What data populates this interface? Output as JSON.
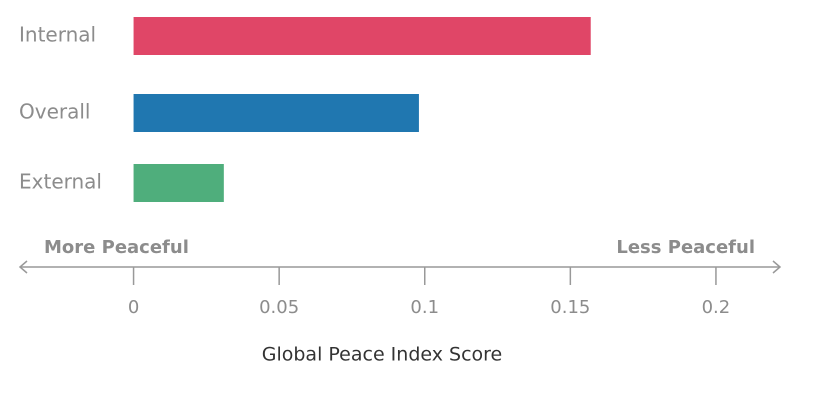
{
  "chart_data": {
    "type": "hbar",
    "categories": [
      "Internal",
      "Overall",
      "External"
    ],
    "values": [
      0.157,
      0.098,
      0.031
    ],
    "colors": [
      "#e04667",
      "#2077b0",
      "#4fae7c"
    ],
    "xlim": [
      -0.039,
      0.222
    ],
    "xticks": [
      0,
      0.05,
      0.1,
      0.15,
      0.2
    ],
    "xlabel": "Global Peace Index Score",
    "annotations": [
      "More Peaceful",
      "Less Peaceful"
    ]
  }
}
